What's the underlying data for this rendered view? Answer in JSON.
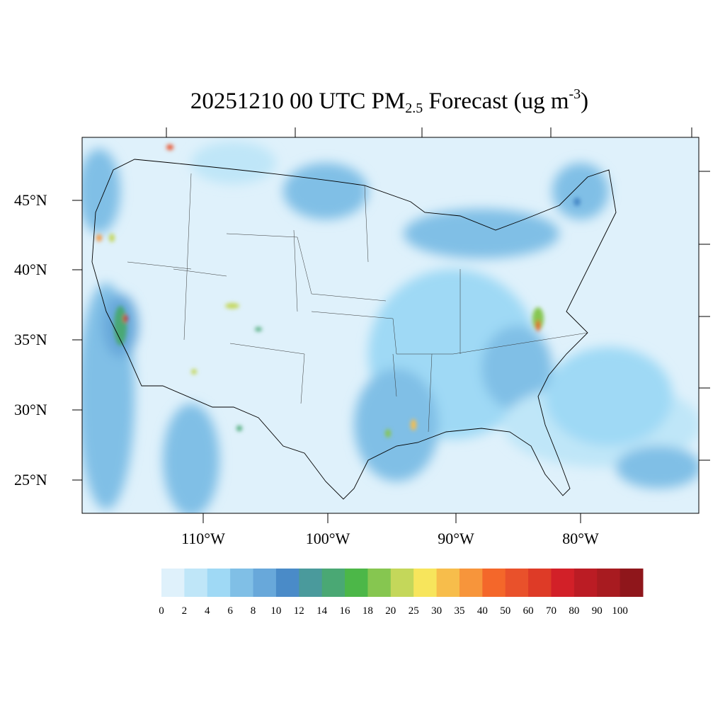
{
  "title": {
    "main": "20251210 00 UTC PM",
    "sub": "2.5",
    "rest": " Forecast (ug m",
    "sup": "-3",
    "close": ")"
  },
  "lat_labels": [
    "45°N",
    "40°N",
    "35°N",
    "30°N",
    "25°N"
  ],
  "lon_labels": [
    "110°W",
    "100°W",
    "90°W",
    "80°W"
  ],
  "colorbar": {
    "labels": [
      "0",
      "2",
      "4",
      "6",
      "8",
      "10",
      "12",
      "14",
      "16",
      "18",
      "20",
      "25",
      "30",
      "35",
      "40",
      "50",
      "60",
      "70",
      "80",
      "90",
      "100"
    ],
    "colors": [
      "#dff1fb",
      "#bfe6f8",
      "#9fd9f5",
      "#80bfe6",
      "#68a8da",
      "#4a8bc8",
      "#4a9a9c",
      "#4aa874",
      "#4cb748",
      "#86c650",
      "#c4d75a",
      "#f7e55c",
      "#f7bd4b",
      "#f7953b",
      "#f4672a",
      "#e9512b",
      "#de3b27",
      "#d22028",
      "#bb1c24",
      "#a81b20",
      "#8f161b"
    ]
  }
}
